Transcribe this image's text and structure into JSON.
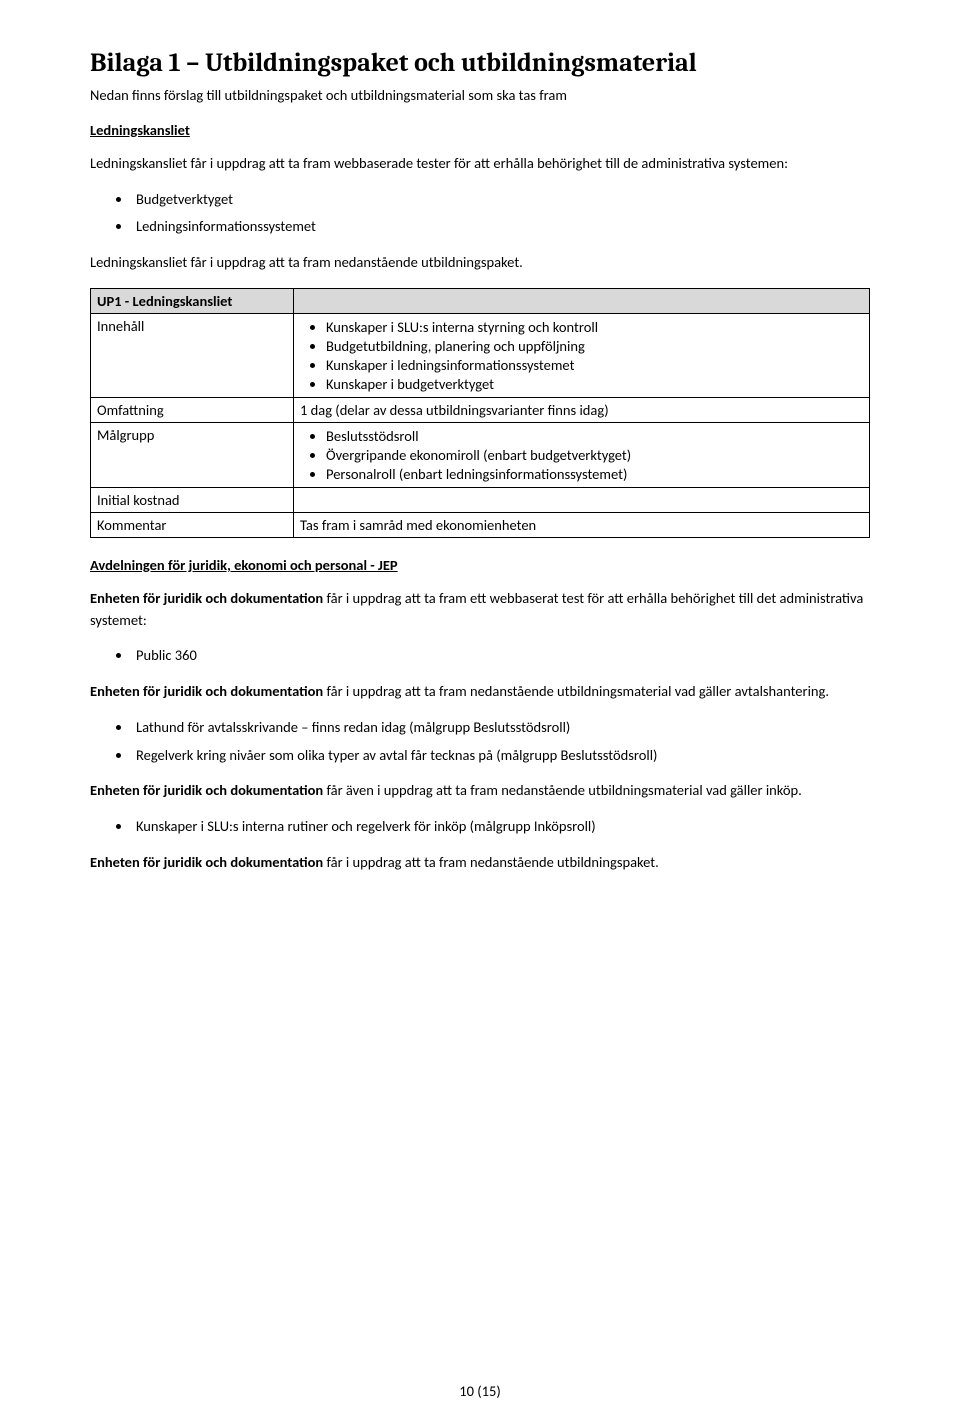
{
  "title": "Bilaga 1 – Utbildningspaket och utbildningsmaterial",
  "intro": "Nedan finns förslag till utbildningspaket och utbildningsmaterial som ska tas fram",
  "section1": {
    "heading": "Ledningskansliet",
    "p1": "Ledningskansliet får i uppdrag att ta fram webbaserade tester för att erhålla behörighet till de administrativa systemen:",
    "bullets1": [
      "Budgetverktyget",
      "Ledningsinformationssystemet"
    ],
    "p2": "Ledningskansliet får i uppdrag att ta fram nedanstående utbildningspaket."
  },
  "up1": {
    "header": "UP1 - Ledningskansliet",
    "rows": {
      "innehall_label": "Innehåll",
      "innehall_items": [
        "Kunskaper i SLU:s interna styrning och kontroll",
        "Budgetutbildning, planering och uppföljning",
        "Kunskaper i ledningsinformationssystemet",
        "Kunskaper i budgetverktyget"
      ],
      "omfattning_label": "Omfattning",
      "omfattning_value": "1 dag (delar av dessa utbildningsvarianter finns idag)",
      "malgrupp_label": "Målgrupp",
      "malgrupp_items": [
        "Beslutsstödsroll",
        "Övergripande ekonomiroll (enbart budgetverktyget)",
        "Personalroll (enbart ledningsinformationssystemet)"
      ],
      "initial_label": "Initial kostnad",
      "initial_value": "",
      "kommentar_label": "Kommentar",
      "kommentar_value": "Tas fram i samråd med ekonomienheten"
    }
  },
  "section2": {
    "heading": "Avdelningen för juridik, ekonomi och personal - JEP",
    "p1_bold": "Enheten för juridik och dokumentation",
    "p1_rest": " får i uppdrag att ta fram ett webbaserat test för att erhålla behörighet till det administrativa systemet:",
    "bullets1": [
      "Public 360"
    ],
    "p2_bold": "Enheten för juridik och dokumentation",
    "p2_rest": " får i uppdrag att ta fram nedanstående utbildningsmaterial vad gäller avtalshantering.",
    "bullets2": [
      "Lathund för avtalsskrivande – finns redan idag (målgrupp Beslutsstödsroll)",
      "Regelverk kring nivåer som olika typer av avtal får tecknas på (målgrupp Beslutsstödsroll)"
    ],
    "p3_bold": "Enheten för juridik och dokumentation",
    "p3_rest": " får även i uppdrag att ta fram nedanstående utbildningsmaterial vad gäller inköp.",
    "bullets3": [
      "Kunskaper i SLU:s interna rutiner och regelverk för inköp (målgrupp Inköpsroll)"
    ],
    "p4_bold": "Enheten för juridik och dokumentation",
    "p4_rest": " får i uppdrag att ta fram nedanstående utbildningspaket."
  },
  "footer": "10 (15)"
}
